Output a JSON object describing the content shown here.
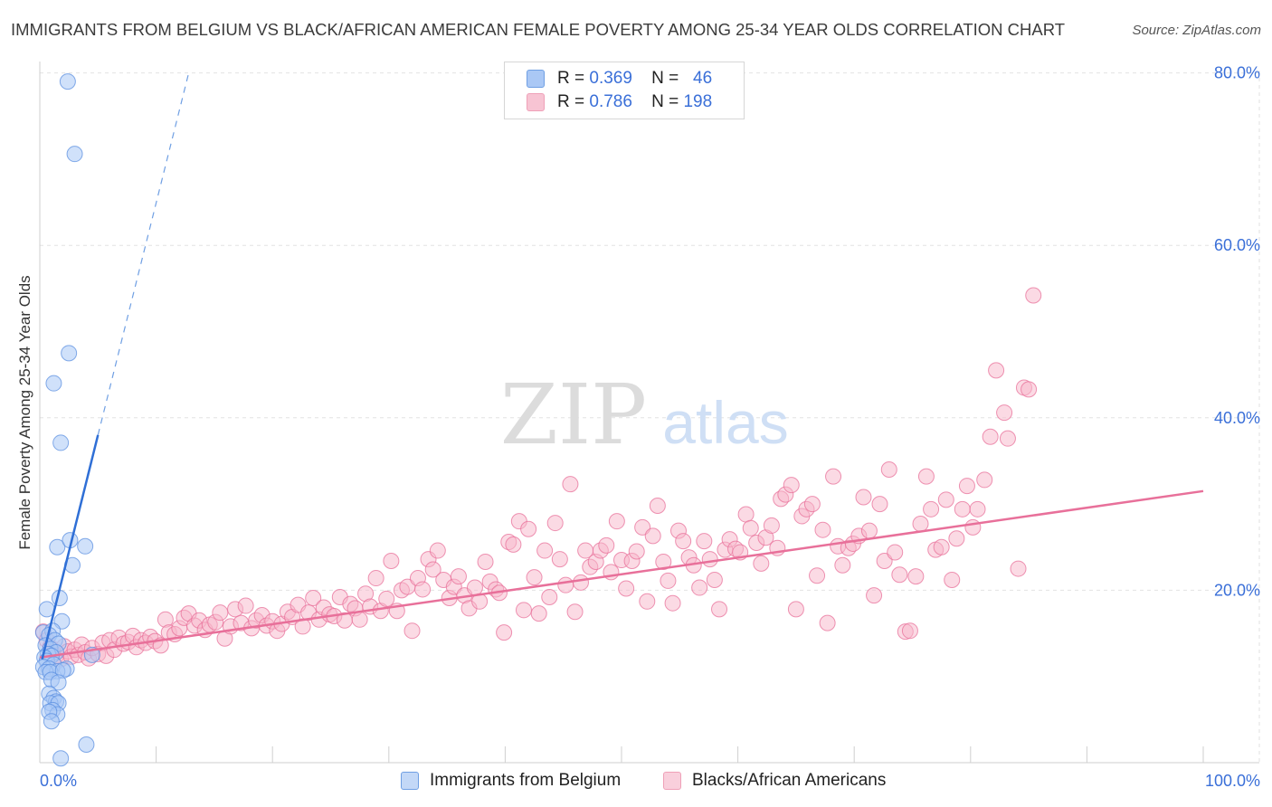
{
  "title": "IMMIGRANTS FROM BELGIUM VS BLACK/AFRICAN AMERICAN FEMALE POVERTY AMONG 25-34 YEAR OLDS CORRELATION CHART",
  "source": "Source: ZipAtlas.com",
  "watermark": {
    "zip": "ZIP",
    "atlas": "atlas"
  },
  "legend": [
    {
      "r_label": "R =",
      "r_value": "0.369",
      "n_label": "N =",
      "n_value": "46",
      "color": "#aac8f5"
    },
    {
      "r_label": "R =",
      "r_value": "0.786",
      "n_label": "N =",
      "n_value": "198",
      "color": "#f7b6c9"
    }
  ],
  "bottom_legend": [
    {
      "label": "Immigrants from Belgium",
      "color": "#aac8f5"
    },
    {
      "label": "Blacks/African Americans",
      "color": "#f7b6c9"
    }
  ],
  "chart_data": {
    "type": "scatter",
    "title": "IMMIGRANTS FROM BELGIUM VS BLACK/AFRICAN AMERICAN FEMALE POVERTY AMONG 25-34 YEAR OLDS CORRELATION CHART",
    "xlabel": "",
    "ylabel": "Female Poverty Among 25-34 Year Olds",
    "xlim": [
      0,
      100
    ],
    "ylim": [
      0,
      80
    ],
    "x_tick_labels": [
      "0.0%",
      "100.0%"
    ],
    "y_ticks": [
      20,
      40,
      60,
      80
    ],
    "y_tick_labels": [
      "20.0%",
      "40.0%",
      "60.0%",
      "80.0%"
    ],
    "grid": true,
    "legend_position": "top-center",
    "series": [
      {
        "name": "Immigrants from Belgium",
        "color": "#5b8fe0",
        "fill": "#aac8f5",
        "r": 0.369,
        "n": 46,
        "trend": {
          "x0": 0.2,
          "y0": 12.0,
          "x1": 5.0,
          "y1": 38.0,
          "dashed_to_x": 12.8,
          "dashed_to_y": 80.0
        },
        "points": [
          [
            2.4,
            79.0
          ],
          [
            3.0,
            70.6
          ],
          [
            2.5,
            47.5
          ],
          [
            1.2,
            44.0
          ],
          [
            1.8,
            37.1
          ],
          [
            1.5,
            25.0
          ],
          [
            2.6,
            25.8
          ],
          [
            3.9,
            25.1
          ],
          [
            2.8,
            22.9
          ],
          [
            1.7,
            19.1
          ],
          [
            0.6,
            17.8
          ],
          [
            1.9,
            16.4
          ],
          [
            0.3,
            15.1
          ],
          [
            1.1,
            15.3
          ],
          [
            0.8,
            14.8
          ],
          [
            1.3,
            14.2
          ],
          [
            1.6,
            13.8
          ],
          [
            0.5,
            13.6
          ],
          [
            0.9,
            13.2
          ],
          [
            1.4,
            12.8
          ],
          [
            0.7,
            12.6
          ],
          [
            1.0,
            12.4
          ],
          [
            0.4,
            12.2
          ],
          [
            0.6,
            11.8
          ],
          [
            1.2,
            11.4
          ],
          [
            0.3,
            11.1
          ],
          [
            0.8,
            10.9
          ],
          [
            2.3,
            10.9
          ],
          [
            1.5,
            10.6
          ],
          [
            0.5,
            10.5
          ],
          [
            0.9,
            10.5
          ],
          [
            4.5,
            12.5
          ],
          [
            2.0,
            10.7
          ],
          [
            1.0,
            9.6
          ],
          [
            1.6,
            9.3
          ],
          [
            0.8,
            8.0
          ],
          [
            1.2,
            7.5
          ],
          [
            1.4,
            7.1
          ],
          [
            0.9,
            6.9
          ],
          [
            1.6,
            6.9
          ],
          [
            1.1,
            6.1
          ],
          [
            1.5,
            5.6
          ],
          [
            0.8,
            5.9
          ],
          [
            1.0,
            4.8
          ],
          [
            4.0,
            2.1
          ],
          [
            1.8,
            0.5
          ]
        ]
      },
      {
        "name": "Blacks/African Americans",
        "color": "#e8709a",
        "fill": "#f7b6c9",
        "r": 0.786,
        "n": 198,
        "trend": {
          "x0": 0.0,
          "y0": 12.2,
          "x1": 100.0,
          "y1": 31.5
        },
        "points": [
          [
            0.3,
            15.2
          ],
          [
            0.6,
            14.2
          ],
          [
            0.9,
            13.4
          ],
          [
            1.2,
            12.8
          ],
          [
            1.4,
            12.4
          ],
          [
            1.8,
            12.0
          ],
          [
            2.1,
            13.5
          ],
          [
            2.4,
            12.9
          ],
          [
            2.7,
            12.3
          ],
          [
            3.0,
            13.1
          ],
          [
            3.3,
            12.5
          ],
          [
            3.6,
            13.7
          ],
          [
            3.9,
            12.8
          ],
          [
            4.2,
            12.1
          ],
          [
            4.5,
            13.3
          ],
          [
            5.0,
            12.6
          ],
          [
            5.4,
            13.9
          ],
          [
            5.7,
            12.4
          ],
          [
            6.0,
            14.2
          ],
          [
            6.4,
            13.1
          ],
          [
            6.8,
            14.5
          ],
          [
            7.2,
            13.8
          ],
          [
            7.6,
            14.0
          ],
          [
            8.0,
            14.7
          ],
          [
            8.3,
            13.4
          ],
          [
            8.7,
            14.2
          ],
          [
            9.1,
            13.9
          ],
          [
            9.5,
            14.6
          ],
          [
            9.9,
            14.1
          ],
          [
            10.4,
            13.6
          ],
          [
            10.8,
            16.6
          ],
          [
            11.1,
            15.1
          ],
          [
            11.6,
            14.9
          ],
          [
            12.0,
            15.6
          ],
          [
            12.4,
            16.8
          ],
          [
            12.8,
            17.3
          ],
          [
            13.3,
            15.9
          ],
          [
            13.7,
            16.5
          ],
          [
            14.2,
            15.4
          ],
          [
            14.6,
            16.0
          ],
          [
            15.1,
            16.3
          ],
          [
            15.5,
            17.4
          ],
          [
            15.9,
            14.4
          ],
          [
            16.4,
            15.8
          ],
          [
            16.8,
            17.8
          ],
          [
            17.3,
            16.2
          ],
          [
            17.7,
            18.2
          ],
          [
            18.2,
            15.6
          ],
          [
            18.6,
            16.5
          ],
          [
            19.1,
            17.1
          ],
          [
            19.5,
            15.9
          ],
          [
            20.0,
            16.4
          ],
          [
            20.4,
            15.3
          ],
          [
            20.8,
            16.1
          ],
          [
            21.3,
            17.5
          ],
          [
            21.7,
            16.9
          ],
          [
            22.2,
            18.3
          ],
          [
            22.6,
            15.8
          ],
          [
            23.1,
            17.4
          ],
          [
            23.5,
            19.1
          ],
          [
            24.0,
            16.6
          ],
          [
            24.4,
            18.0
          ],
          [
            24.9,
            17.2
          ],
          [
            25.3,
            17.0
          ],
          [
            25.8,
            19.2
          ],
          [
            26.2,
            16.5
          ],
          [
            26.7,
            18.4
          ],
          [
            27.1,
            17.9
          ],
          [
            27.5,
            16.6
          ],
          [
            28.0,
            19.6
          ],
          [
            28.4,
            18.1
          ],
          [
            28.9,
            21.4
          ],
          [
            29.3,
            17.6
          ],
          [
            29.8,
            19.0
          ],
          [
            30.2,
            23.4
          ],
          [
            30.7,
            17.6
          ],
          [
            31.1,
            20.0
          ],
          [
            31.6,
            20.4
          ],
          [
            32.0,
            15.3
          ],
          [
            32.5,
            21.4
          ],
          [
            32.9,
            20.1
          ],
          [
            33.4,
            23.6
          ],
          [
            33.8,
            22.4
          ],
          [
            34.2,
            24.6
          ],
          [
            34.7,
            21.2
          ],
          [
            35.2,
            19.1
          ],
          [
            35.6,
            20.4
          ],
          [
            36.0,
            21.6
          ],
          [
            36.5,
            19.4
          ],
          [
            36.9,
            17.9
          ],
          [
            37.4,
            20.3
          ],
          [
            37.8,
            18.7
          ],
          [
            38.3,
            23.3
          ],
          [
            38.7,
            21.0
          ],
          [
            39.2,
            20.1
          ],
          [
            39.5,
            19.7
          ],
          [
            39.9,
            15.1
          ],
          [
            40.3,
            25.6
          ],
          [
            40.7,
            25.3
          ],
          [
            41.2,
            28.0
          ],
          [
            41.6,
            17.7
          ],
          [
            42.0,
            27.1
          ],
          [
            42.5,
            21.5
          ],
          [
            42.9,
            17.3
          ],
          [
            43.4,
            24.6
          ],
          [
            43.8,
            19.2
          ],
          [
            44.3,
            27.8
          ],
          [
            44.7,
            23.6
          ],
          [
            45.2,
            20.6
          ],
          [
            45.6,
            32.3
          ],
          [
            46.0,
            17.5
          ],
          [
            46.5,
            20.9
          ],
          [
            46.9,
            24.6
          ],
          [
            47.3,
            22.7
          ],
          [
            47.8,
            23.3
          ],
          [
            48.2,
            24.6
          ],
          [
            48.7,
            25.2
          ],
          [
            49.1,
            22.1
          ],
          [
            49.6,
            28.0
          ],
          [
            50.0,
            23.5
          ],
          [
            50.4,
            20.2
          ],
          [
            50.9,
            23.4
          ],
          [
            51.3,
            24.5
          ],
          [
            51.8,
            27.3
          ],
          [
            52.2,
            18.7
          ],
          [
            52.7,
            26.3
          ],
          [
            53.1,
            29.8
          ],
          [
            53.6,
            23.3
          ],
          [
            54.0,
            21.1
          ],
          [
            54.4,
            18.5
          ],
          [
            54.9,
            26.9
          ],
          [
            55.3,
            25.7
          ],
          [
            55.8,
            23.8
          ],
          [
            56.2,
            22.9
          ],
          [
            56.7,
            20.3
          ],
          [
            57.1,
            25.7
          ],
          [
            57.6,
            23.6
          ],
          [
            58.0,
            21.2
          ],
          [
            58.4,
            17.8
          ],
          [
            58.9,
            24.7
          ],
          [
            59.3,
            25.9
          ],
          [
            59.8,
            24.8
          ],
          [
            60.2,
            24.4
          ],
          [
            60.7,
            28.8
          ],
          [
            61.1,
            27.2
          ],
          [
            61.6,
            25.5
          ],
          [
            62.0,
            23.1
          ],
          [
            62.4,
            26.1
          ],
          [
            62.9,
            27.5
          ],
          [
            63.4,
            24.9
          ],
          [
            63.7,
            30.6
          ],
          [
            64.1,
            31.1
          ],
          [
            64.6,
            32.2
          ],
          [
            65.0,
            17.8
          ],
          [
            65.5,
            28.6
          ],
          [
            65.9,
            29.4
          ],
          [
            66.4,
            30.0
          ],
          [
            66.8,
            21.7
          ],
          [
            67.3,
            27.0
          ],
          [
            67.7,
            16.2
          ],
          [
            68.2,
            33.2
          ],
          [
            68.6,
            25.1
          ],
          [
            69.0,
            22.9
          ],
          [
            69.5,
            24.9
          ],
          [
            69.9,
            25.4
          ],
          [
            70.4,
            26.3
          ],
          [
            70.8,
            30.8
          ],
          [
            71.3,
            26.9
          ],
          [
            71.7,
            19.4
          ],
          [
            72.2,
            30.0
          ],
          [
            72.6,
            23.4
          ],
          [
            73.0,
            34.0
          ],
          [
            73.5,
            24.4
          ],
          [
            73.9,
            21.8
          ],
          [
            74.4,
            15.2
          ],
          [
            74.8,
            15.3
          ],
          [
            75.3,
            21.6
          ],
          [
            75.7,
            27.7
          ],
          [
            76.2,
            33.2
          ],
          [
            76.6,
            29.4
          ],
          [
            77.0,
            24.7
          ],
          [
            77.5,
            25.0
          ],
          [
            77.9,
            30.5
          ],
          [
            78.4,
            21.2
          ],
          [
            78.8,
            26.0
          ],
          [
            79.3,
            29.4
          ],
          [
            79.7,
            32.1
          ],
          [
            80.2,
            27.3
          ],
          [
            80.6,
            29.4
          ],
          [
            81.2,
            32.8
          ],
          [
            81.7,
            37.8
          ],
          [
            82.2,
            45.5
          ],
          [
            82.9,
            40.6
          ],
          [
            83.2,
            37.6
          ],
          [
            84.1,
            22.5
          ],
          [
            84.6,
            43.5
          ],
          [
            85.0,
            43.3
          ],
          [
            85.4,
            54.2
          ]
        ]
      }
    ]
  }
}
